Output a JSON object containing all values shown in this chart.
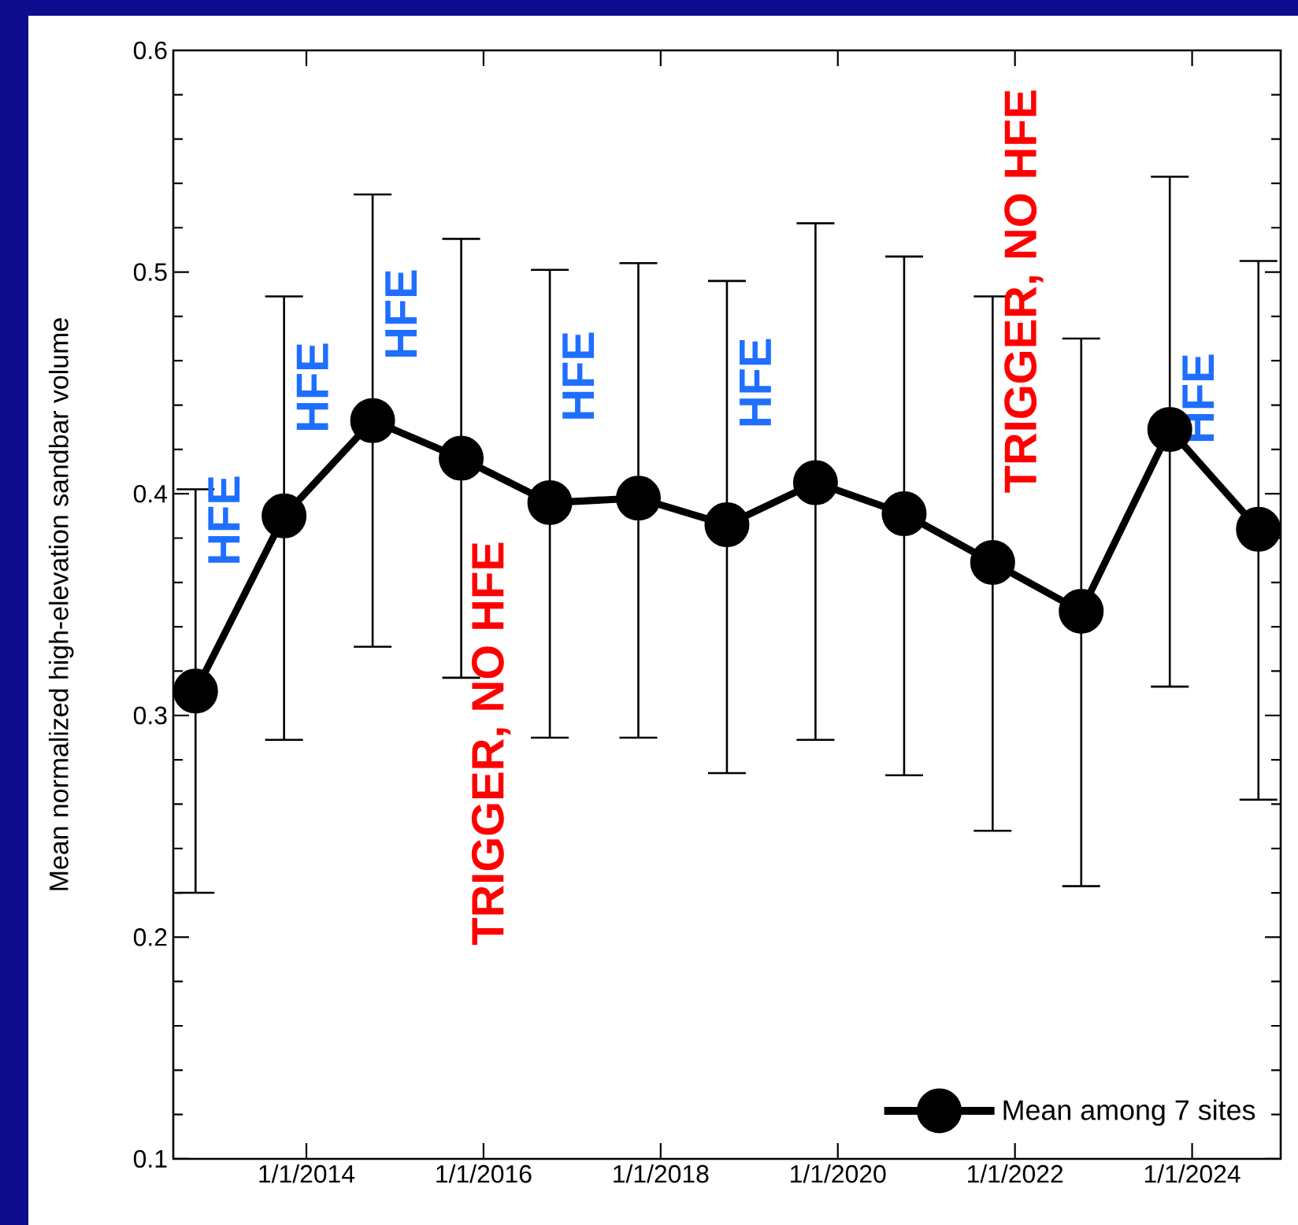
{
  "chart_data": {
    "type": "line",
    "ylabel": "Mean normalized high-elevation sandbar volume",
    "x": [
      "2012-10",
      "2013-10",
      "2014-10",
      "2015-10",
      "2016-10",
      "2017-10",
      "2018-10",
      "2019-10",
      "2020-10",
      "2021-10",
      "2022-10",
      "2023-10",
      "2024-10"
    ],
    "series": [
      {
        "name": "Mean among 7 sites",
        "color": "#000000",
        "values": [
          0.311,
          0.39,
          0.433,
          0.416,
          0.396,
          0.398,
          0.386,
          0.405,
          0.391,
          0.369,
          0.347,
          0.429,
          0.384
        ],
        "errors": [
          [
            0.22,
            0.402
          ],
          [
            0.289,
            0.489
          ],
          [
            0.331,
            0.535
          ],
          [
            0.317,
            0.515
          ],
          [
            0.29,
            0.501
          ],
          [
            0.29,
            0.504
          ],
          [
            0.274,
            0.496
          ],
          [
            0.289,
            0.522
          ],
          [
            0.273,
            0.507
          ],
          [
            0.248,
            0.489
          ],
          [
            0.223,
            0.47
          ],
          [
            0.313,
            0.543
          ],
          [
            0.262,
            0.505
          ]
        ]
      }
    ],
    "xlim": [
      "2012-07-01",
      "2025-01-01"
    ],
    "ylim": [
      0.1,
      0.6
    ],
    "xticks": [
      {
        "value": "2014-01-01",
        "label": "1/1/2014"
      },
      {
        "value": "2016-01-01",
        "label": "1/1/2016"
      },
      {
        "value": "2018-01-01",
        "label": "1/1/2018"
      },
      {
        "value": "2020-01-01",
        "label": "1/1/2020"
      },
      {
        "value": "2022-01-01",
        "label": "1/1/2022"
      },
      {
        "value": "2024-01-01",
        "label": "1/1/2024"
      }
    ],
    "yticks": [
      0.1,
      0.2,
      0.3,
      0.4,
      0.5,
      0.6
    ],
    "marker": "circle",
    "line_style": "solid",
    "legend": "bottom right",
    "grid": false,
    "annotations": [
      {
        "text": "HFE",
        "x": "2012-10",
        "y": 0.388
      },
      {
        "text": "HFE",
        "x": "2013-10",
        "y": 0.448
      },
      {
        "text": "HFE",
        "x": "2014-10",
        "y": 0.481
      },
      "TRIGGER, NO HFE",
      {
        "text": "HFE",
        "x": "2016-10",
        "y": 0.453
      },
      {
        "text": "HFE",
        "x": "2018-10",
        "y": 0.45
      },
      "TRIGGER, NO HFE",
      {
        "text": "HFE",
        "x": "2023-10",
        "y": 0.443
      }
    ]
  }
}
